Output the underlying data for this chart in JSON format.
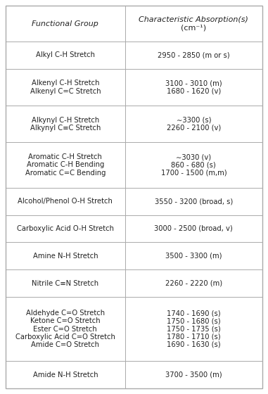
{
  "title_col1": "Functional Group",
  "title_col2_line1": "Characteristic Absorption(s)",
  "title_col2_line2": "(cm⁻¹)",
  "rows": [
    {
      "col1": [
        "Alkyl C-H Stretch"
      ],
      "col2": [
        "2950 - 2850 (m or s)"
      ]
    },
    {
      "col1": [
        "Alkenyl C-H Stretch",
        "Alkenyl C=C Stretch"
      ],
      "col2": [
        "3100 - 3010 (m)",
        "1680 - 1620 (v)"
      ]
    },
    {
      "col1": [
        "Alkynyl C-H Stretch",
        "Alkynyl C≡C Stretch"
      ],
      "col2": [
        "∼3300 (s)",
        "2260 - 2100 (v)"
      ]
    },
    {
      "col1": [
        "Aromatic C-H Stretch",
        "Aromatic C-H Bending",
        "Aromatic C=C Bending"
      ],
      "col2": [
        "∼3030 (v)",
        "860 - 680 (s)",
        "1700 - 1500 (m,m)"
      ]
    },
    {
      "col1": [
        "Alcohol/Phenol O-H Stretch"
      ],
      "col2": [
        "3550 - 3200 (broad, s)"
      ]
    },
    {
      "col1": [
        "Carboxylic Acid O-H Stretch"
      ],
      "col2": [
        "3000 - 2500 (broad, v)"
      ]
    },
    {
      "col1": [
        "Amine N-H Stretch"
      ],
      "col2": [
        "3500 - 3300 (m)"
      ]
    },
    {
      "col1": [
        "Nitrile C≡N Stretch"
      ],
      "col2": [
        "2260 - 2220 (m)"
      ]
    },
    {
      "col1": [
        "Aldehyde C=O Stretch",
        "Ketone C=O Stretch",
        "Ester C=O Stretch",
        "Carboxylic Acid C=O Stretch",
        "Amide C=O Stretch"
      ],
      "col2": [
        "1740 - 1690 (s)",
        "1750 - 1680 (s)",
        "1750 - 1735 (s)",
        "1780 - 1710 (s)",
        "1690 - 1630 (s)"
      ]
    },
    {
      "col1": [
        "Amide N-H Stretch"
      ],
      "col2": [
        "3700 - 3500 (m)"
      ]
    }
  ],
  "line_color": "#aaaaaa",
  "text_color": "#222222",
  "font_size": 7.2,
  "header_font_size": 8.0,
  "col_split": 0.465
}
